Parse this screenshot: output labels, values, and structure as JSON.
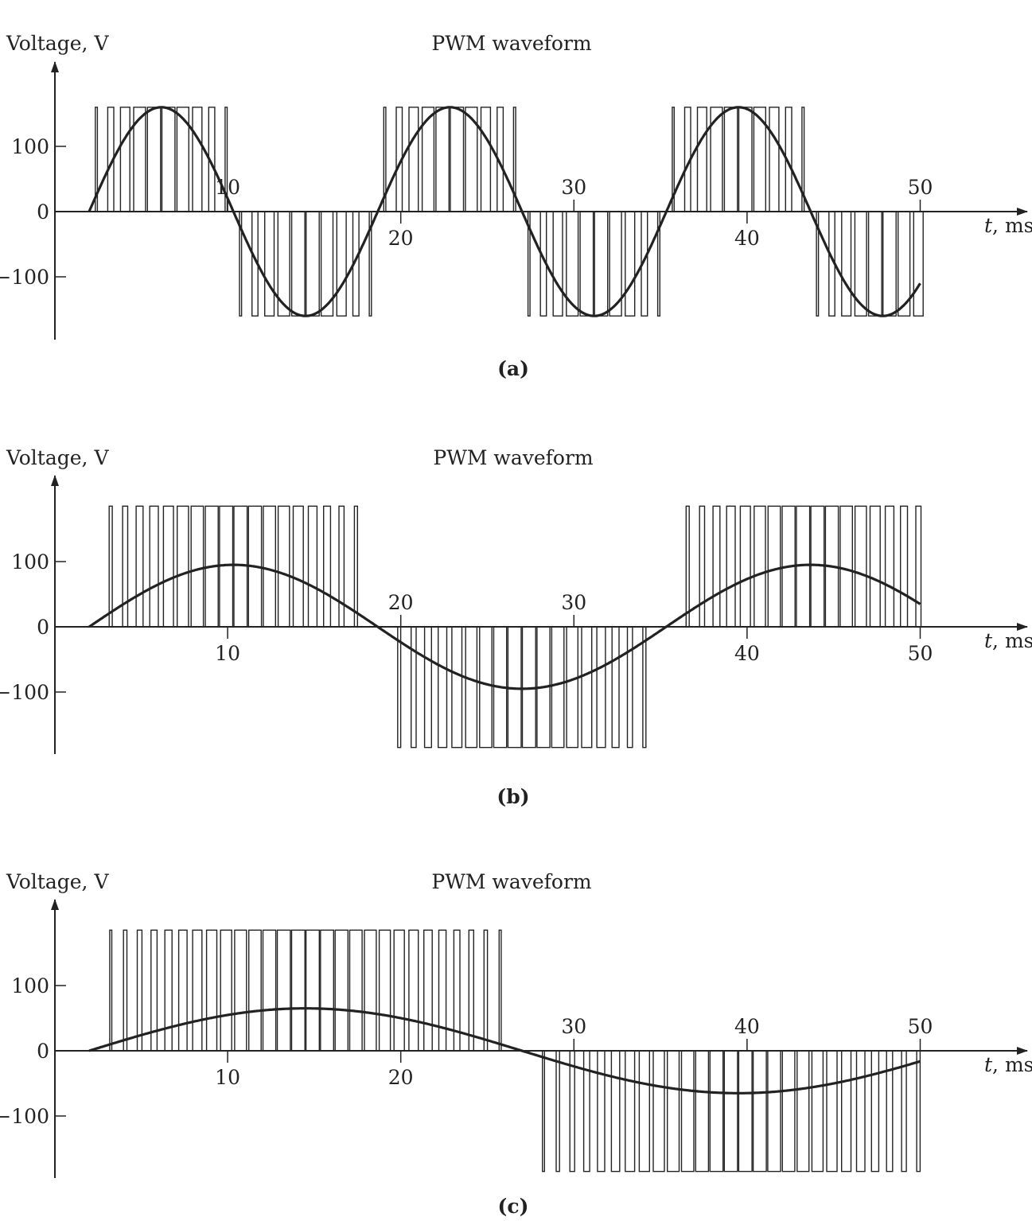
{
  "figure_title": "",
  "captions": [
    "(a)",
    "(b)",
    "(c)"
  ],
  "colors": {
    "ink": "#222222",
    "background": "#ffffff"
  },
  "chart_data": [
    {
      "type": "line",
      "title": "PWM waveform",
      "ylabel": "Voltage, V",
      "xlabel_italic": "t",
      "xlabel_unit": ", ms",
      "caption": "(a)",
      "xlim": [
        0,
        51
      ],
      "ylim": [
        -195,
        195
      ],
      "y_ticks": [
        100,
        0,
        -100
      ],
      "y_tick_labels": [
        "100",
        "0",
        "−100"
      ],
      "x_tick_labels": [
        {
          "value": 10,
          "label": "10",
          "pos": "above"
        },
        {
          "value": 20,
          "label": "20",
          "pos": "below"
        },
        {
          "value": 30,
          "label": "30",
          "pos": "above"
        },
        {
          "value": 40,
          "label": "40",
          "pos": "below"
        },
        {
          "value": 50,
          "label": "50",
          "pos": "above"
        }
      ],
      "series": [
        {
          "kind": "sine",
          "amplitude": 160,
          "period_ms": 16.67,
          "start_ms": 2,
          "end_ms": 52.0
        },
        {
          "kind": "pwm",
          "pulse_height": 160,
          "switching_period_ms": 0.833,
          "start_ms": 2,
          "end_ms": 52.0
        }
      ]
    },
    {
      "type": "line",
      "title": "PWM waveform",
      "ylabel": "Voltage, V",
      "xlabel_italic": "t",
      "xlabel_unit": ", ms",
      "caption": "(b)",
      "xlim": [
        0,
        51
      ],
      "ylim": [
        -195,
        195
      ],
      "y_ticks": [
        100,
        0,
        -100
      ],
      "y_tick_labels": [
        "100",
        "0",
        "−100"
      ],
      "x_tick_labels": [
        {
          "value": 10,
          "label": "10",
          "pos": "below"
        },
        {
          "value": 20,
          "label": "20",
          "pos": "above"
        },
        {
          "value": 30,
          "label": "30",
          "pos": "above"
        },
        {
          "value": 40,
          "label": "40",
          "pos": "below"
        },
        {
          "value": 50,
          "label": "50",
          "pos": "below"
        }
      ],
      "series": [
        {
          "kind": "sine",
          "amplitude": 95,
          "period_ms": 33.33,
          "start_ms": 2,
          "end_ms": 52.0
        },
        {
          "kind": "pwm",
          "pulse_height": 185,
          "switching_period_ms": 0.833,
          "start_ms": 2,
          "end_ms": 52.0
        }
      ]
    },
    {
      "type": "line",
      "title": "PWM waveform",
      "ylabel": "Voltage, V",
      "xlabel_italic": "t",
      "xlabel_unit": ", ms",
      "caption": "(c)",
      "xlim": [
        0,
        51
      ],
      "ylim": [
        -195,
        195
      ],
      "y_ticks": [
        100,
        0,
        -100
      ],
      "y_tick_labels": [
        "100",
        "0",
        "−100"
      ],
      "x_tick_labels": [
        {
          "value": 10,
          "label": "10",
          "pos": "below"
        },
        {
          "value": 20,
          "label": "20",
          "pos": "below"
        },
        {
          "value": 30,
          "label": "30",
          "pos": "above"
        },
        {
          "value": 40,
          "label": "40",
          "pos": "above"
        },
        {
          "value": 50,
          "label": "50",
          "pos": "above"
        }
      ],
      "series": [
        {
          "kind": "sine",
          "amplitude": 65,
          "period_ms": 50.0,
          "start_ms": 2,
          "end_ms": 52.0
        },
        {
          "kind": "pwm",
          "pulse_height": 185,
          "switching_period_ms": 0.833,
          "start_ms": 2,
          "end_ms": 52.0
        }
      ]
    }
  ]
}
